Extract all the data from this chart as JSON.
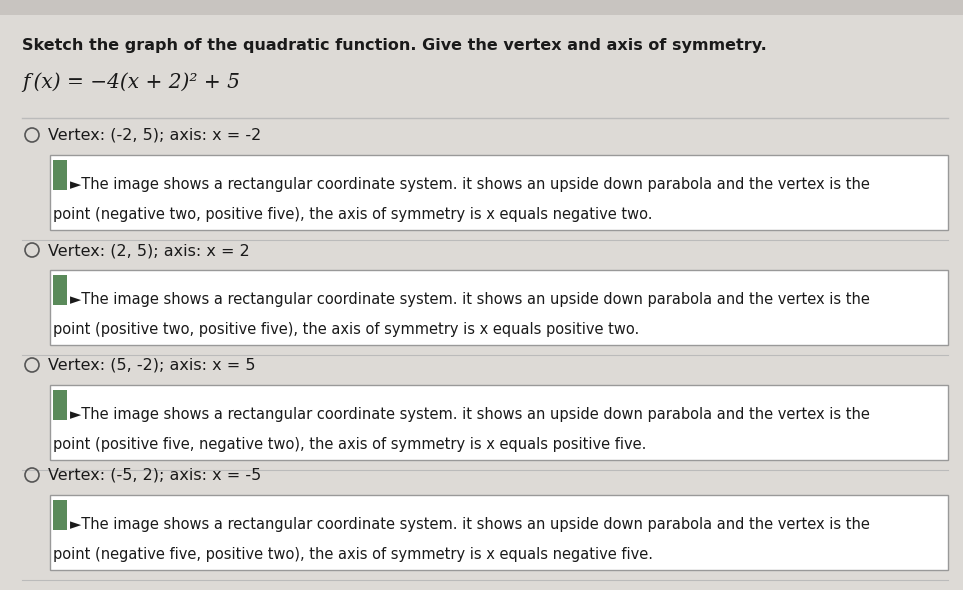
{
  "title_line1": "Sketch the graph of the quadratic function. Give the vertex and axis of symmetry.",
  "function_label": "f (x) = −4(x + 2)² + 5",
  "options": [
    {
      "label": "Vertex: (-2, 5); axis: x = -2",
      "desc_line1": "►The image shows a rectangular coordinate system. it shows an upside down parabola and the vertex is the",
      "desc_line2": "point (negative two, positive five), the axis of symmetry is x equals negative two."
    },
    {
      "label": "Vertex: (2, 5); axis: x = 2",
      "desc_line1": "►The image shows a rectangular coordinate system. it shows an upside down parabola and the vertex is the",
      "desc_line2": "point (positive two, positive five), the axis of symmetry is x equals positive two."
    },
    {
      "label": "Vertex: (5, -2); axis: x = 5",
      "desc_line1": "►The image shows a rectangular coordinate system. it shows an upside down parabola and the vertex is the",
      "desc_line2": "point (positive five, negative two), the axis of symmetry is x equals positive five."
    },
    {
      "label": "Vertex: (-5, 2); axis: x = -5",
      "desc_line1": "►The image shows a rectangular coordinate system. it shows an upside down parabola and the vertex is the",
      "desc_line2": "point (negative five, positive two), the axis of symmetry is x equals negative five."
    }
  ],
  "bg_color": "#dddad6",
  "box_bg_color": "#ffffff",
  "box_border_color": "#999999",
  "text_color": "#1a1a1a",
  "circle_color": "#555555",
  "sep_color": "#bbbbbb",
  "title_fontsize": 11.5,
  "function_fontsize": 14.5,
  "option_label_fontsize": 11.5,
  "desc_fontsize": 10.5,
  "image_icon_color": "#5a8a5a",
  "top_bar_color": "#c8c4c0"
}
